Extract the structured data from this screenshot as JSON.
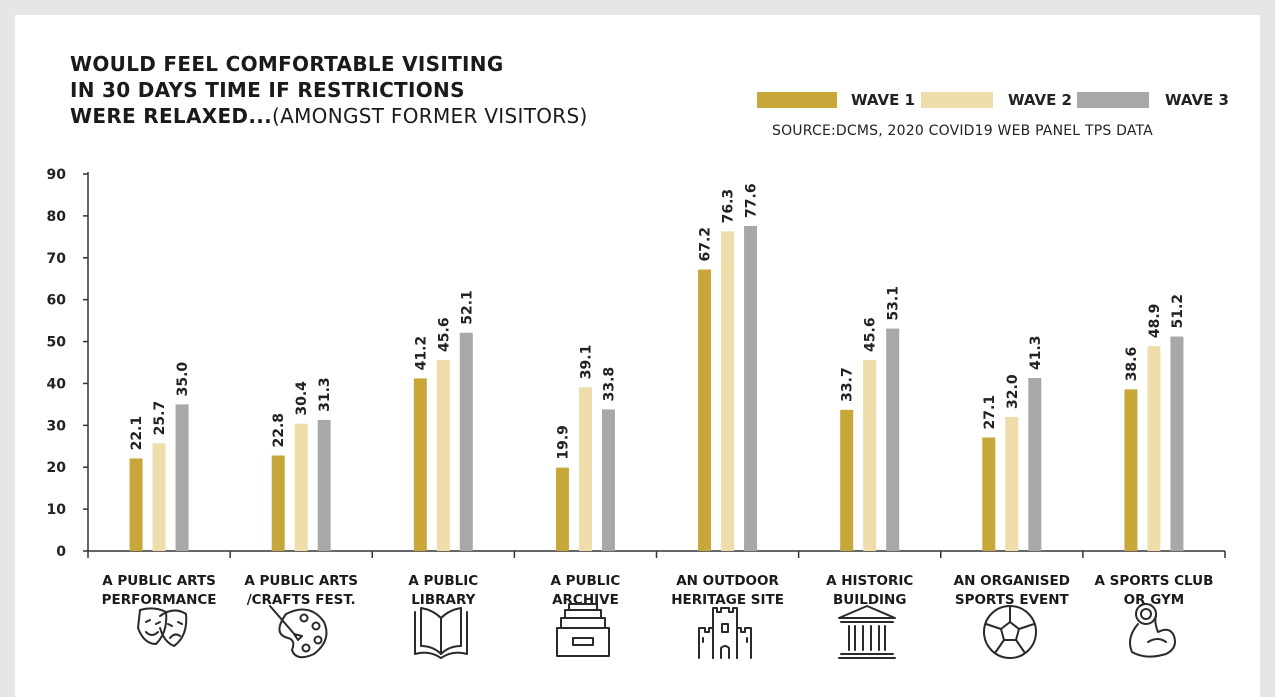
{
  "title": {
    "line1": "WOULD FEEL COMFORTABLE VISITING",
    "line2": "IN 30 DAYS TIME IF RESTRICTIONS",
    "line3_bold": "WERE RELAXED...",
    "line3_light": "(AMONGST FORMER VISITORS)"
  },
  "source": "SOURCE:DCMS, 2020 COVID19 WEB PANEL TPS DATA",
  "colors": {
    "wave1": "#c8a73a",
    "wave2": "#eedcaa",
    "wave3": "#a8a8a8",
    "axis": "#333333",
    "background": "#e6e6e6"
  },
  "chart_data": {
    "type": "bar",
    "categories": [
      [
        "A PUBLIC ARTS",
        "PERFORMANCE"
      ],
      [
        "A PUBLIC ARTS",
        "/CRAFTS FEST."
      ],
      [
        "A PUBLIC",
        "LIBRARY"
      ],
      [
        "A PUBLIC",
        "ARCHIVE"
      ],
      [
        "AN OUTDOOR",
        "HERITAGE SITE"
      ],
      [
        "A HISTORIC",
        "BUILDING"
      ],
      [
        "AN ORGANISED",
        "SPORTS EVENT"
      ],
      [
        "A SPORTS CLUB",
        "OR GYM"
      ]
    ],
    "category_icons": [
      "theatre-masks-icon",
      "paint-palette-icon",
      "open-book-icon",
      "file-drawer-icon",
      "castle-icon",
      "classical-building-icon",
      "football-icon",
      "flexed-arm-icon"
    ],
    "series": [
      {
        "name": "WAVE 1",
        "values": [
          22.1,
          22.8,
          41.2,
          19.9,
          67.2,
          33.7,
          27.1,
          38.6
        ],
        "labels": [
          "22.1",
          "22.8",
          "41.2",
          "19.9",
          "67.2",
          "33.7",
          "27.1",
          "38.6"
        ]
      },
      {
        "name": "WAVE 2",
        "values": [
          25.7,
          30.4,
          45.6,
          39.1,
          76.3,
          45.6,
          32.0,
          48.9
        ],
        "labels": [
          "25.7",
          "30.4",
          "45.6",
          "39.1",
          "76.3",
          "45.6",
          "32.0",
          "48.9"
        ]
      },
      {
        "name": "WAVE 3",
        "values": [
          35.0,
          31.3,
          52.1,
          33.8,
          77.6,
          53.1,
          41.3,
          51.2
        ],
        "labels": [
          "35.0",
          "31.3",
          "52.1",
          "33.8",
          "77.6",
          "53.1",
          "41.3",
          "51.2"
        ]
      }
    ],
    "ylim": [
      0,
      90
    ],
    "yticks": [
      0,
      10,
      20,
      30,
      40,
      50,
      60,
      70,
      80,
      90
    ],
    "legend_position": "top-right",
    "grid": false,
    "xlabel": "",
    "ylabel": ""
  }
}
